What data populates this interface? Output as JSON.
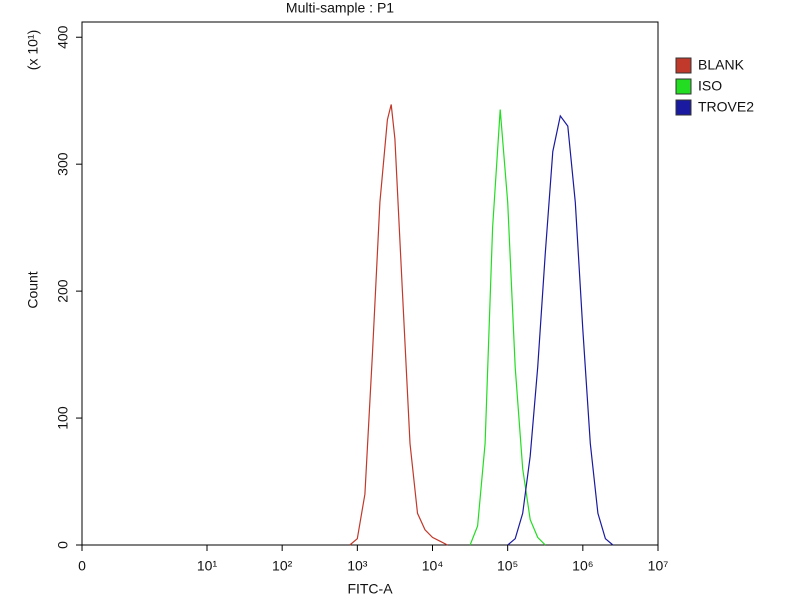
{
  "chart_data": {
    "type": "line",
    "title": "Multi-sample : P1",
    "x_label": "FITC-A",
    "y_label": "Count",
    "y_multiplier": "(x 10¹)",
    "xlim": [
      0,
      10000000
    ],
    "ylim": [
      0,
      412
    ],
    "xticks": [
      0,
      {
        "value": 10,
        "label": "10¹"
      },
      {
        "value": 100,
        "label": "10²"
      },
      {
        "value": 1000,
        "label": "10³"
      },
      {
        "value": 10000,
        "label": "10⁴"
      },
      {
        "value": 100000,
        "label": "10⁵"
      },
      {
        "value": 1000000,
        "label": "10⁶"
      },
      {
        "value": 10000000,
        "label": "10⁷"
      }
    ],
    "yticks": [
      0,
      100,
      200,
      300,
      400
    ],
    "xscale": "biexponential",
    "legend": "right",
    "series": [
      {
        "name": "BLANK",
        "color": "#c0392b",
        "x": [
          794,
          1000,
          1259,
          1585,
          1995,
          2512,
          2818,
          3162,
          3981,
          5012,
          6310,
          7943,
          10000,
          12589,
          15849
        ],
        "values": [
          0,
          5,
          40,
          150,
          270,
          335,
          347,
          320,
          200,
          80,
          25,
          12,
          6,
          3,
          0
        ]
      },
      {
        "name": "ISO",
        "color": "#22dd22",
        "x": [
          31623,
          39811,
          50119,
          63096,
          79433,
          100000,
          125893,
          158489,
          199526,
          251189,
          316228
        ],
        "values": [
          0,
          15,
          80,
          250,
          343,
          270,
          140,
          60,
          20,
          6,
          0
        ]
      },
      {
        "name": "TROVE2",
        "color": "#1a1aa0",
        "x": [
          100000,
          125893,
          158489,
          199526,
          251189,
          316228,
          398107,
          501187,
          630957,
          794328,
          1000000,
          1258925,
          1584893,
          1995262,
          2511886
        ],
        "values": [
          0,
          5,
          25,
          70,
          140,
          230,
          310,
          338,
          330,
          270,
          170,
          80,
          25,
          5,
          0
        ]
      }
    ]
  }
}
